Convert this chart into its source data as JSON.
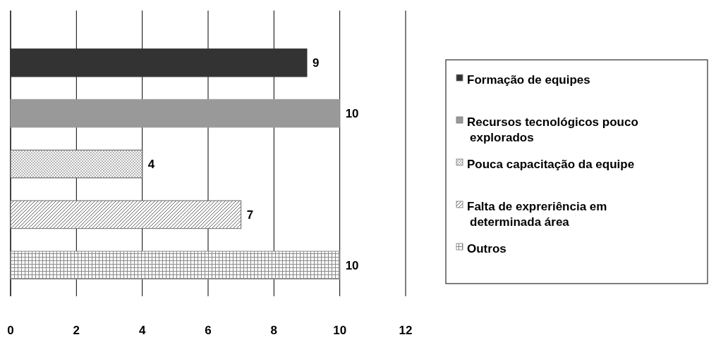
{
  "chart_data": {
    "type": "bar",
    "orientation": "horizontal",
    "categories": [
      null,
      null,
      null,
      null,
      null
    ],
    "series": [
      {
        "name": "Formação de equipes",
        "color": "#333333",
        "values": [
          9,
          null,
          null,
          null,
          null
        ]
      },
      {
        "name": "Recursos tecnológicos pouco explorados",
        "color": "#999999",
        "values": [
          null,
          10,
          null,
          null,
          null
        ]
      },
      {
        "name": "Pouca capacitação da equipe",
        "color": "#555555",
        "values": [
          null,
          null,
          4,
          null,
          null
        ]
      },
      {
        "name": "Falta de expreriência em determinada área",
        "color": "#666666",
        "values": [
          null,
          null,
          null,
          7,
          null
        ]
      },
      {
        "name": "Outros",
        "color": "#888888",
        "values": [
          null,
          null,
          null,
          null,
          10
        ]
      }
    ],
    "xlim": [
      0,
      12
    ],
    "xticks": [
      0,
      2,
      4,
      6,
      8,
      10,
      12
    ],
    "grid": "x",
    "legend": "right",
    "data_labels": true
  }
}
